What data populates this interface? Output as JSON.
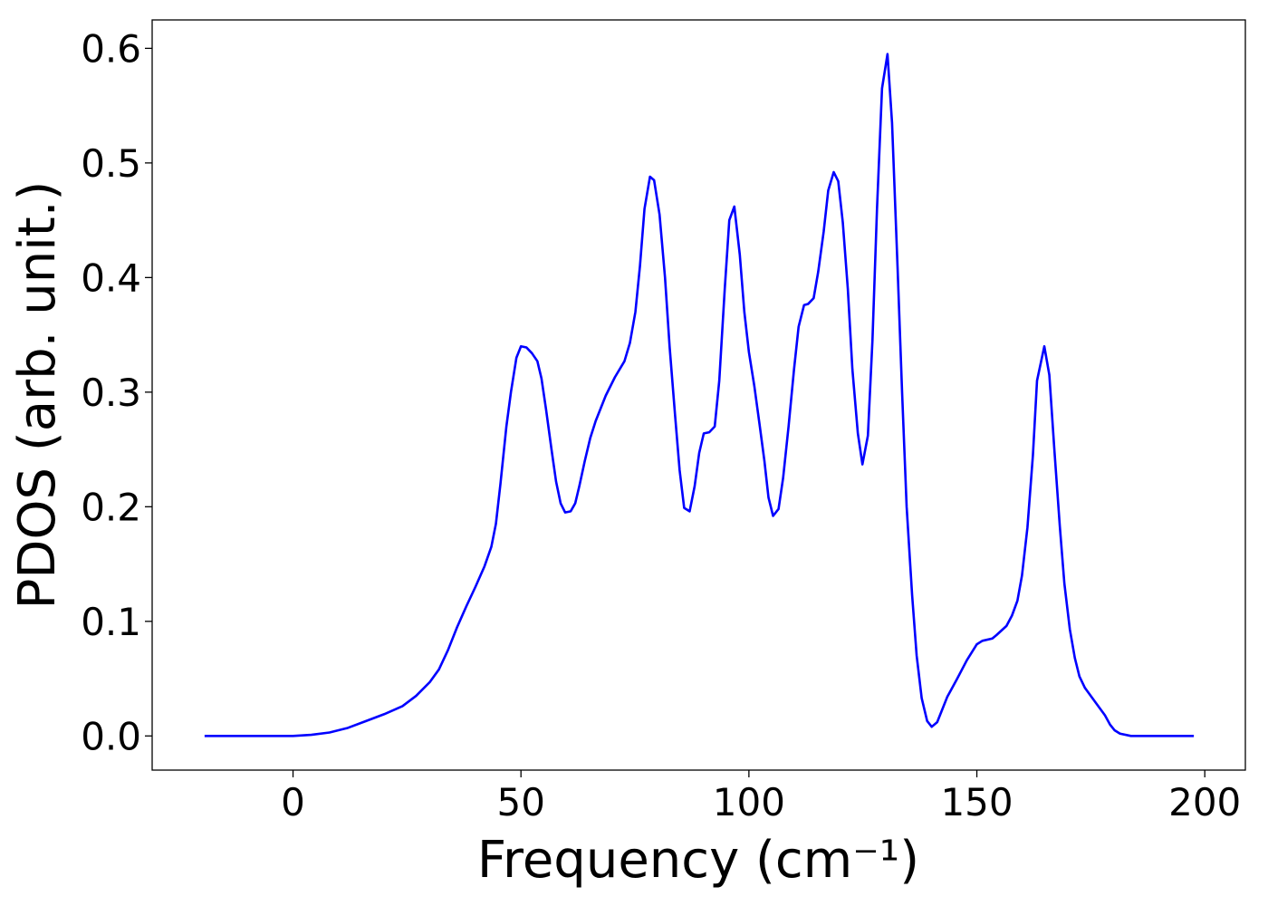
{
  "chart_data": {
    "type": "line",
    "xlabel": "Frequency (cm⁻¹)",
    "ylabel": "PDOS (arb. unit.)",
    "color": "#0000ff",
    "x": [
      -19.4,
      0,
      4,
      8,
      12,
      16,
      20,
      24,
      27,
      30,
      32,
      34,
      36,
      38,
      40,
      42,
      43.5,
      44.5,
      45.5,
      46.8,
      47.8,
      49,
      50,
      51.2,
      52.4,
      53.6,
      54.5,
      55.5,
      56.7,
      57.7,
      58.7,
      59.7,
      60.9,
      61.9,
      62.8,
      64,
      65.2,
      66.4,
      68.6,
      70.6,
      72.7,
      73.9,
      75.1,
      76.1,
      77.1,
      78.3,
      79.2,
      80.4,
      81.6,
      82.6,
      83.8,
      84.8,
      85.8,
      87,
      88.1,
      89.1,
      90.1,
      91.3,
      92.5,
      93.5,
      94.7,
      95.7,
      96.8,
      98,
      99,
      100,
      101.2,
      102.4,
      103.4,
      104.3,
      105.3,
      106.5,
      107.5,
      108.7,
      109.9,
      110.9,
      112.1,
      113,
      114.2,
      115.2,
      116.4,
      117.4,
      118.6,
      119.6,
      120.6,
      121.7,
      122.7,
      123.9,
      124.9,
      126.1,
      127.1,
      128.1,
      129.2,
      130.4,
      131.4,
      132.6,
      133.6,
      134.6,
      135.8,
      136.8,
      137.9,
      139.1,
      140.1,
      141.3,
      142.3,
      143.5,
      145.7,
      147.8,
      150,
      151.2,
      153.4,
      154.3,
      156.5,
      157.7,
      158.9,
      159.9,
      161.1,
      162.3,
      163.2,
      164.8,
      165.9,
      167,
      168.2,
      169.2,
      170.4,
      171.5,
      172.5,
      173.7,
      175.9,
      178.1,
      179.2,
      180.2,
      181.4,
      183.8,
      197.6
    ],
    "values": [
      0,
      0,
      0.001,
      0.003,
      0.007,
      0.013,
      0.019,
      0.026,
      0.035,
      0.047,
      0.058,
      0.075,
      0.095,
      0.113,
      0.13,
      0.148,
      0.165,
      0.185,
      0.22,
      0.27,
      0.3,
      0.33,
      0.34,
      0.339,
      0.334,
      0.327,
      0.312,
      0.285,
      0.25,
      0.222,
      0.203,
      0.195,
      0.196,
      0.203,
      0.218,
      0.24,
      0.26,
      0.275,
      0.297,
      0.313,
      0.327,
      0.343,
      0.37,
      0.41,
      0.46,
      0.488,
      0.485,
      0.455,
      0.4,
      0.34,
      0.28,
      0.232,
      0.199,
      0.196,
      0.218,
      0.247,
      0.264,
      0.265,
      0.27,
      0.31,
      0.39,
      0.45,
      0.462,
      0.42,
      0.37,
      0.335,
      0.305,
      0.27,
      0.24,
      0.208,
      0.192,
      0.198,
      0.225,
      0.27,
      0.32,
      0.357,
      0.376,
      0.377,
      0.382,
      0.405,
      0.44,
      0.476,
      0.492,
      0.484,
      0.448,
      0.39,
      0.32,
      0.264,
      0.237,
      0.262,
      0.345,
      0.46,
      0.565,
      0.595,
      0.535,
      0.41,
      0.3,
      0.2,
      0.123,
      0.07,
      0.033,
      0.013,
      0.008,
      0.012,
      0.022,
      0.034,
      0.05,
      0.066,
      0.08,
      0.083,
      0.085,
      0.088,
      0.096,
      0.105,
      0.118,
      0.14,
      0.182,
      0.245,
      0.31,
      0.34,
      0.315,
      0.25,
      0.183,
      0.133,
      0.093,
      0.068,
      0.052,
      0.042,
      0.03,
      0.018,
      0.01,
      0.005,
      0.002,
      0,
      0
    ],
    "xlim": [
      -30.9,
      208.9
    ],
    "ylim": [
      -0.0298,
      0.6248
    ],
    "xticks": [
      0,
      50,
      100,
      150,
      200
    ],
    "yticks": [
      {
        "value": 0,
        "label": "0.0"
      },
      0.1,
      0.2,
      0.3,
      0.4,
      0.5,
      0.6
    ]
  }
}
